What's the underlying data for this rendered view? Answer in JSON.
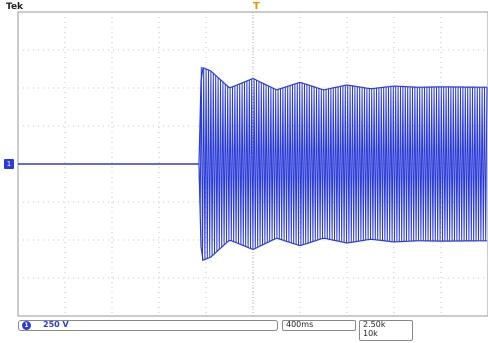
{
  "header": {
    "brand": "Tek",
    "trigger_marker": "T"
  },
  "channel": {
    "marker": "1",
    "badge": "1",
    "scale": "250 V",
    "color": "#2a3bd8"
  },
  "timebase": {
    "value": "400ms"
  },
  "acquisition": {
    "sample_rate": "2.50k",
    "record_length": "10k"
  },
  "chart_data": {
    "type": "line",
    "title": "",
    "xlabel": "",
    "ylabel": "",
    "divisions": {
      "x": 10,
      "y": 8
    },
    "grid": true,
    "series": [
      {
        "color": "#2a3bd8",
        "baseline_div": 0,
        "burst_start_div": 3.85,
        "envelope_div": [
          [
            3.85,
            0
          ],
          [
            3.9,
            2.55
          ],
          [
            4.1,
            2.45
          ],
          [
            4.5,
            2.0
          ],
          [
            5.0,
            2.25
          ],
          [
            5.5,
            1.95
          ],
          [
            6.0,
            2.15
          ],
          [
            6.5,
            1.95
          ],
          [
            7.0,
            2.08
          ],
          [
            7.5,
            1.98
          ],
          [
            8.0,
            2.05
          ],
          [
            8.5,
            2.02
          ],
          [
            9.0,
            2.03
          ],
          [
            10.0,
            2.02
          ]
        ]
      }
    ]
  }
}
